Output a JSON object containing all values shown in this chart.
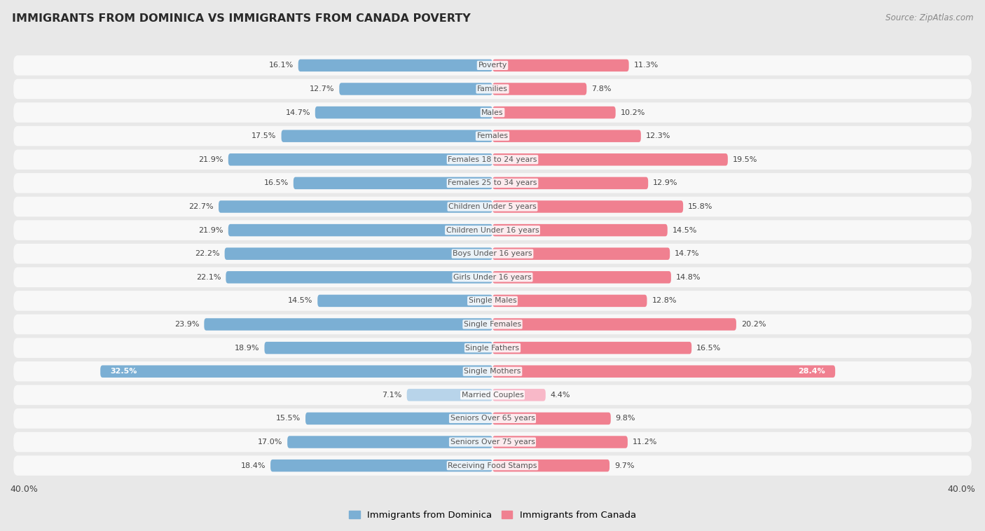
{
  "title": "IMMIGRANTS FROM DOMINICA VS IMMIGRANTS FROM CANADA POVERTY",
  "source": "Source: ZipAtlas.com",
  "categories": [
    "Poverty",
    "Families",
    "Males",
    "Females",
    "Females 18 to 24 years",
    "Females 25 to 34 years",
    "Children Under 5 years",
    "Children Under 16 years",
    "Boys Under 16 years",
    "Girls Under 16 years",
    "Single Males",
    "Single Females",
    "Single Fathers",
    "Single Mothers",
    "Married Couples",
    "Seniors Over 65 years",
    "Seniors Over 75 years",
    "Receiving Food Stamps"
  ],
  "dominica_values": [
    16.1,
    12.7,
    14.7,
    17.5,
    21.9,
    16.5,
    22.7,
    21.9,
    22.2,
    22.1,
    14.5,
    23.9,
    18.9,
    32.5,
    7.1,
    15.5,
    17.0,
    18.4
  ],
  "canada_values": [
    11.3,
    7.8,
    10.2,
    12.3,
    19.5,
    12.9,
    15.8,
    14.5,
    14.7,
    14.8,
    12.8,
    20.2,
    16.5,
    28.4,
    4.4,
    9.8,
    11.2,
    9.7
  ],
  "dominica_color": "#7bafd4",
  "canada_color": "#f08090",
  "dominica_color_light": "#a8c8e8",
  "canada_color_light": "#f4aab8",
  "married_dominica_color": "#b8d4ea",
  "married_canada_color": "#f8b8c8",
  "dominica_label": "Immigrants from Dominica",
  "canada_label": "Immigrants from Canada",
  "xlim": 40.0,
  "page_bg": "#e8e8e8",
  "row_bg": "#f8f8f8",
  "row_bg_dark": "#f0f0f0",
  "label_color": "#555555",
  "value_color": "#444444",
  "white": "#ffffff"
}
